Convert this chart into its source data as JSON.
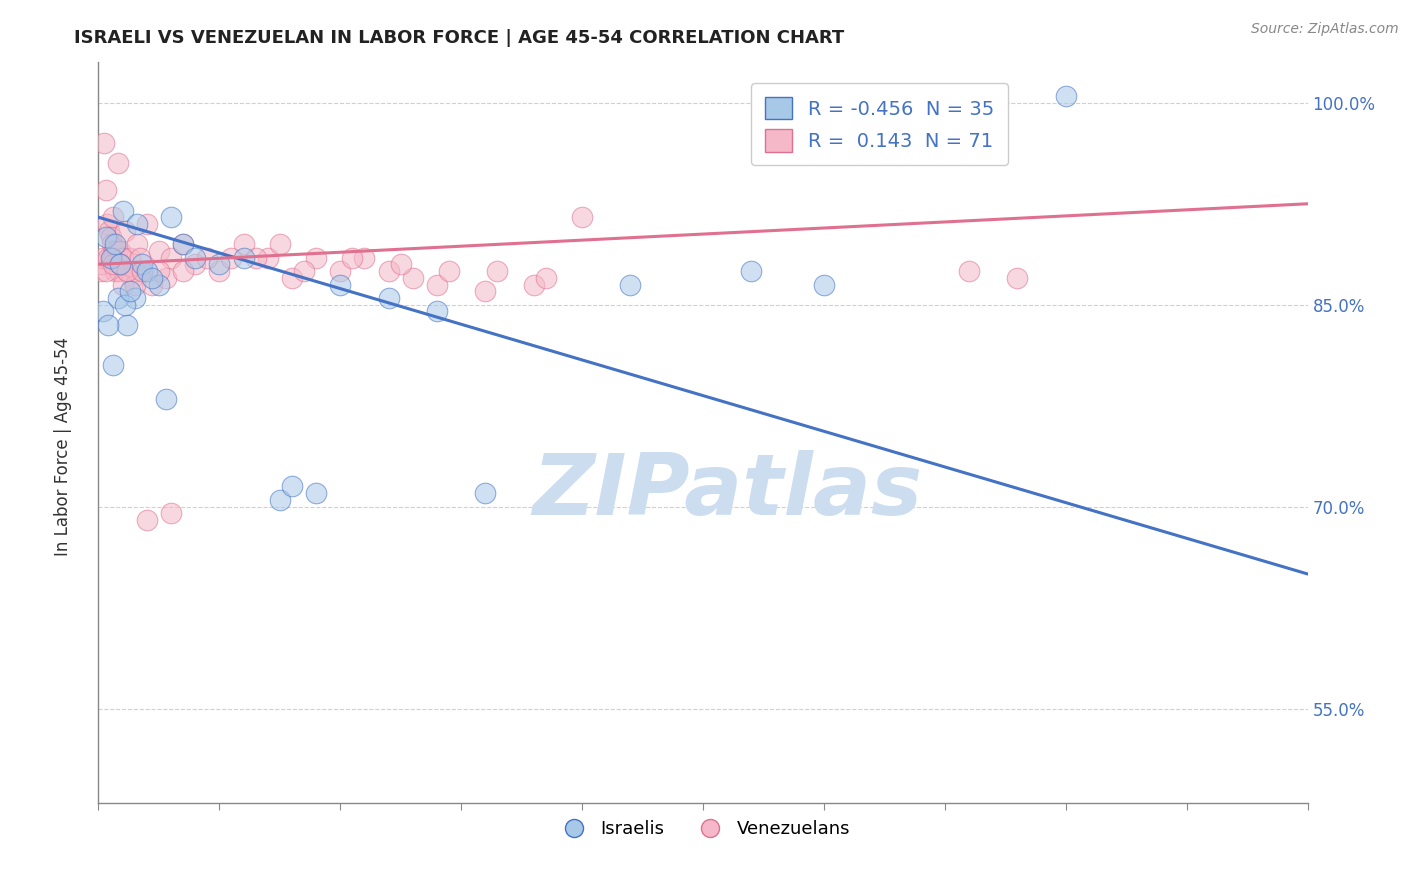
{
  "title": "ISRAELI VS VENEZUELAN IN LABOR FORCE | AGE 45-54 CORRELATION CHART",
  "source": "Source: ZipAtlas.com",
  "ylabel": "In Labor Force | Age 45-54",
  "xmin": 0.0,
  "xmax": 50.0,
  "ymin": 48.0,
  "ymax": 103.0,
  "blue_color": "#a8c8e8",
  "blue_line_color": "#4472c4",
  "pink_color": "#f4b8c8",
  "pink_line_color": "#e07090",
  "watermark": "ZIPatlas",
  "watermark_color": "#ccddf0",
  "grid_color": "#d0d0d0",
  "background_color": "#ffffff",
  "blue_r": -0.456,
  "blue_n": 35,
  "pink_r": 0.143,
  "pink_n": 71,
  "blue_trend_x": [
    0.0,
    50.0
  ],
  "blue_trend_y": [
    91.5,
    65.0
  ],
  "pink_trend_x": [
    0.0,
    50.0
  ],
  "pink_trend_y": [
    88.0,
    92.5
  ],
  "ytick_positions": [
    55.0,
    70.0,
    85.0,
    100.0
  ],
  "ytick_minor_positions": [
    48,
    51,
    54,
    57,
    60,
    63,
    66,
    69,
    72,
    75,
    78,
    81,
    84,
    87,
    90,
    93,
    96,
    99,
    102
  ],
  "xtick_minor_positions": [
    0,
    5,
    10,
    15,
    20,
    25,
    30,
    35,
    40,
    45,
    50
  ],
  "blue_points_x": [
    0.3,
    0.5,
    0.7,
    0.9,
    1.0,
    1.2,
    1.5,
    1.8,
    2.0,
    2.5,
    3.0,
    3.5,
    4.0,
    5.0,
    6.0,
    7.5,
    8.0,
    9.0,
    10.0,
    12.0,
    14.0,
    16.0,
    22.0,
    27.0,
    30.0,
    40.0,
    0.2,
    0.4,
    0.6,
    0.8,
    1.1,
    1.3,
    1.6,
    2.2,
    2.8
  ],
  "blue_points_y": [
    90.0,
    88.5,
    89.5,
    88.0,
    92.0,
    83.5,
    85.5,
    88.0,
    87.5,
    86.5,
    91.5,
    89.5,
    88.5,
    88.0,
    88.5,
    70.5,
    71.5,
    71.0,
    86.5,
    85.5,
    84.5,
    71.0,
    86.5,
    87.5,
    86.5,
    100.5,
    84.5,
    83.5,
    80.5,
    85.5,
    85.0,
    86.0,
    91.0,
    87.0,
    78.0
  ],
  "pink_points_x": [
    0.1,
    0.15,
    0.2,
    0.3,
    0.35,
    0.4,
    0.45,
    0.5,
    0.55,
    0.6,
    0.65,
    0.7,
    0.75,
    0.8,
    0.85,
    0.9,
    1.0,
    1.1,
    1.2,
    1.3,
    1.4,
    1.5,
    1.6,
    1.7,
    1.8,
    2.0,
    2.2,
    2.5,
    2.8,
    3.0,
    3.5,
    4.0,
    5.0,
    6.0,
    7.0,
    8.0,
    9.0,
    10.0,
    11.0,
    12.0,
    13.0,
    14.0,
    16.0,
    18.0,
    20.0,
    0.25,
    0.55,
    0.8,
    1.0,
    1.5,
    2.0,
    2.5,
    3.0,
    3.5,
    4.5,
    5.5,
    6.5,
    7.5,
    8.5,
    10.5,
    12.5,
    14.5,
    16.5,
    18.5,
    36.0,
    38.0,
    0.3,
    0.6,
    0.9,
    1.2,
    1.8
  ],
  "pink_points_y": [
    87.5,
    88.0,
    88.5,
    93.5,
    91.0,
    88.5,
    90.5,
    90.0,
    89.5,
    91.5,
    89.0,
    87.5,
    89.0,
    88.0,
    87.5,
    89.0,
    88.5,
    90.5,
    87.5,
    88.5,
    87.0,
    87.5,
    89.5,
    88.5,
    87.5,
    91.0,
    86.5,
    89.0,
    87.0,
    88.5,
    89.5,
    88.0,
    87.5,
    89.5,
    88.5,
    87.0,
    88.5,
    87.5,
    88.5,
    87.5,
    87.0,
    86.5,
    86.0,
    86.5,
    91.5,
    97.0,
    88.5,
    95.5,
    86.5,
    86.5,
    69.0,
    87.5,
    69.5,
    87.5,
    88.5,
    88.5,
    88.5,
    89.5,
    87.5,
    88.5,
    88.0,
    87.5,
    87.5,
    87.0,
    87.5,
    87.0,
    87.5,
    88.0,
    88.0,
    87.5,
    87.5
  ]
}
